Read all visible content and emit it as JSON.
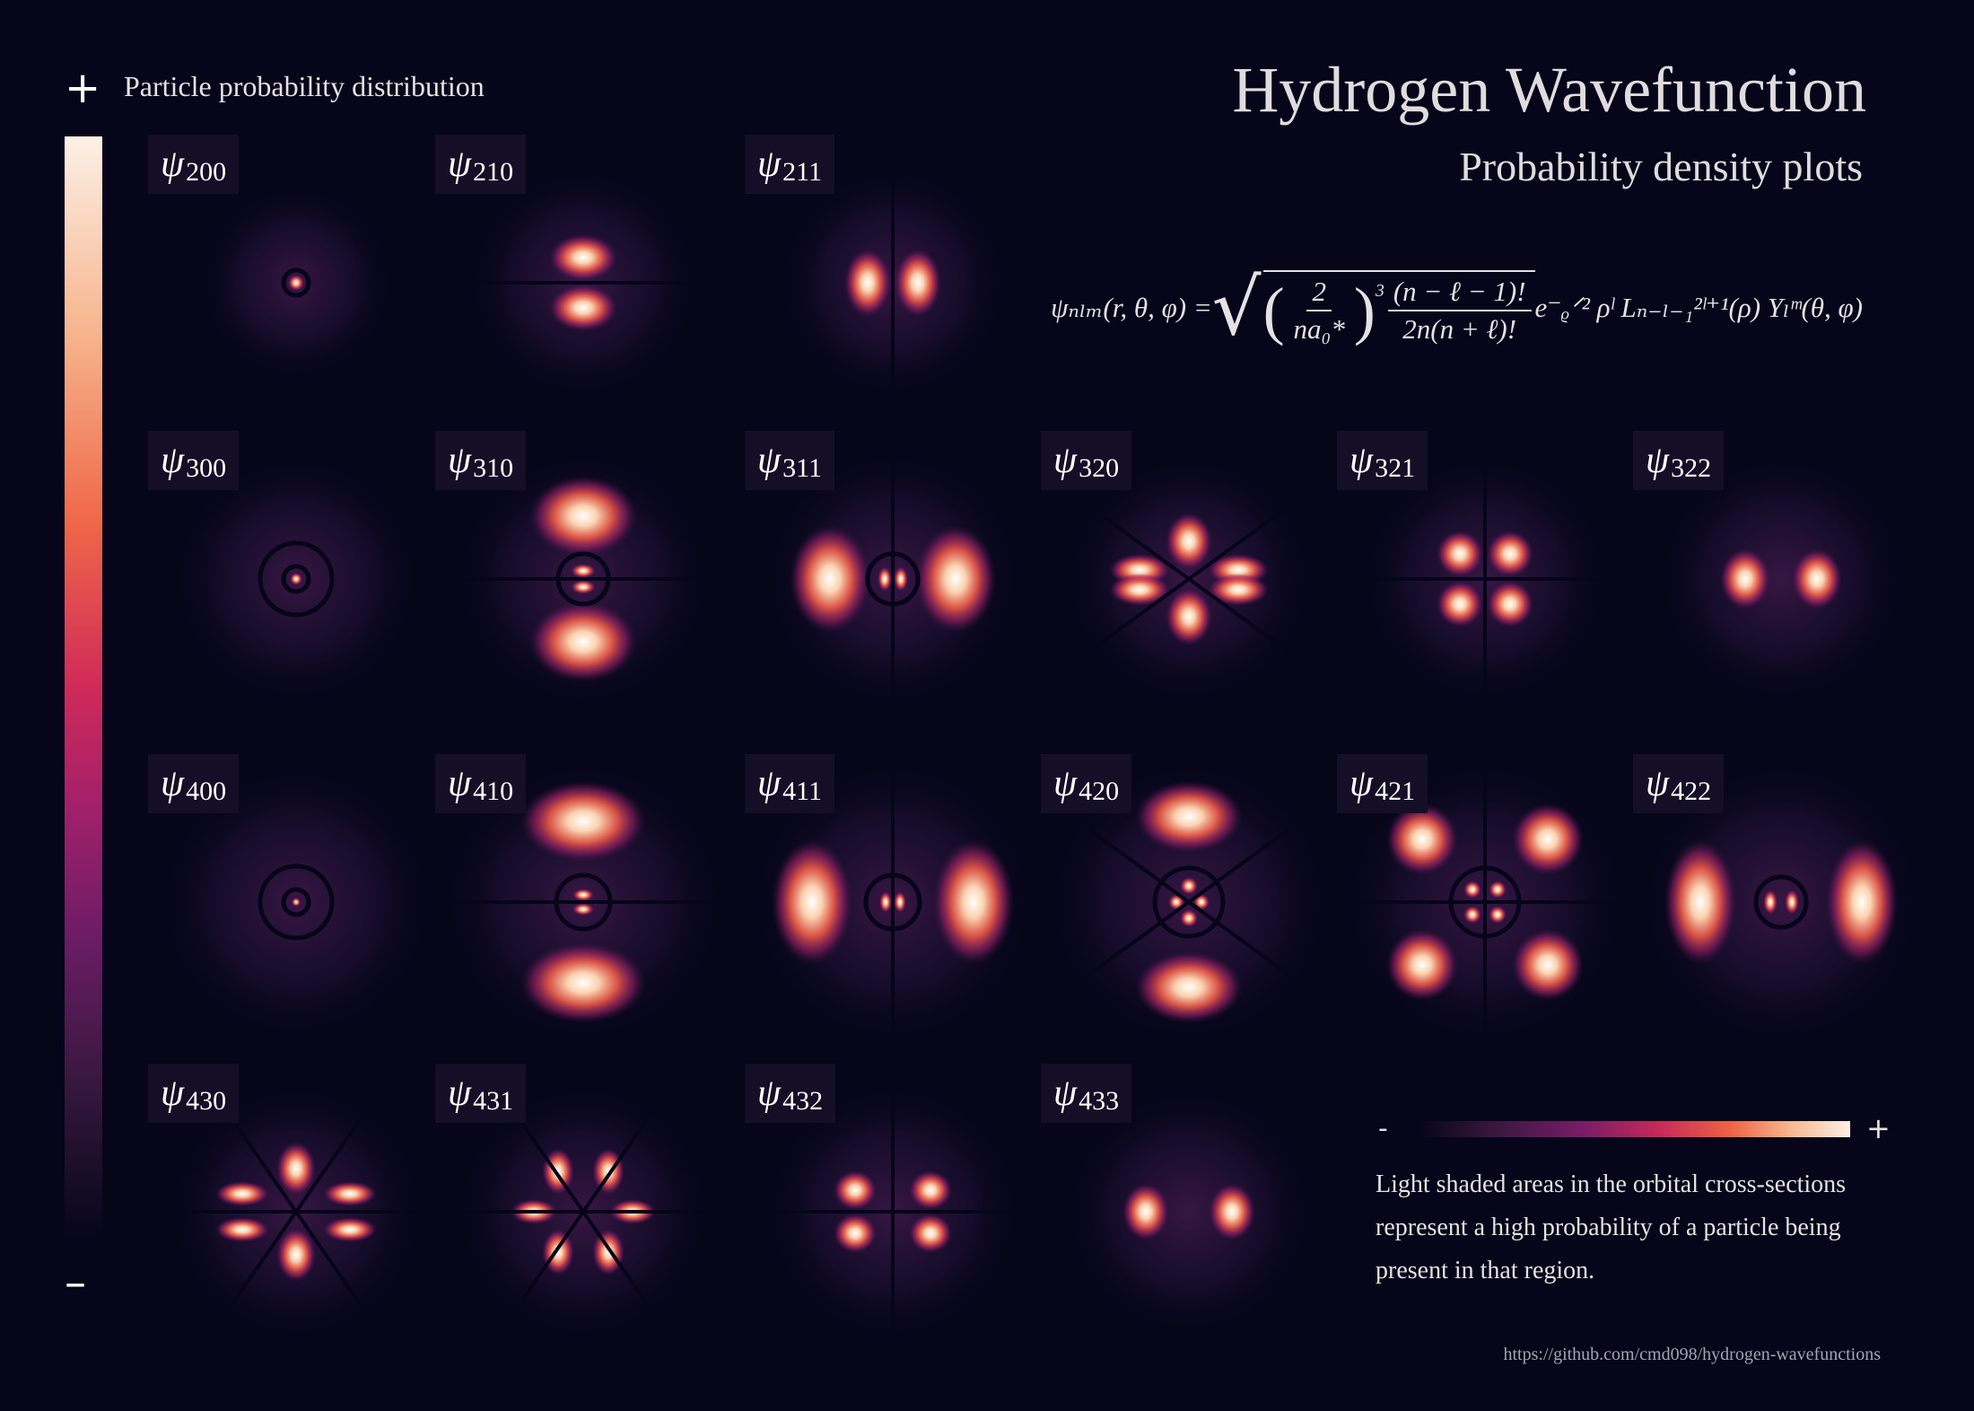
{
  "title": "Hydrogen Wavefunction",
  "subtitle": "Probability density plots",
  "legend": {
    "label": "Particle probability distribution",
    "plus": "+",
    "minus": "–"
  },
  "formula": {
    "lhs": "ψₙₗₘ(r, θ, φ) =",
    "frac1_num": "2",
    "frac1_den": "na₀*",
    "power": "3",
    "frac2_num": "(n − ℓ − 1)!",
    "frac2_den": "2n(n + ℓ)!",
    "tail": "e⁻ᵨᐟ² ρˡ Lₙ₋ₗ₋₁²ˡ⁺¹(ρ) Yₗᵐ(θ, φ)"
  },
  "orbitals": [
    {
      "symbol": "ψ",
      "sub": "200"
    },
    {
      "symbol": "ψ",
      "sub": "210"
    },
    {
      "symbol": "ψ",
      "sub": "211"
    },
    {
      "symbol": "ψ",
      "sub": "300"
    },
    {
      "symbol": "ψ",
      "sub": "310"
    },
    {
      "symbol": "ψ",
      "sub": "311"
    },
    {
      "symbol": "ψ",
      "sub": "320"
    },
    {
      "symbol": "ψ",
      "sub": "321"
    },
    {
      "symbol": "ψ",
      "sub": "322"
    },
    {
      "symbol": "ψ",
      "sub": "400"
    },
    {
      "symbol": "ψ",
      "sub": "410"
    },
    {
      "symbol": "ψ",
      "sub": "411"
    },
    {
      "symbol": "ψ",
      "sub": "420"
    },
    {
      "symbol": "ψ",
      "sub": "421"
    },
    {
      "symbol": "ψ",
      "sub": "422"
    },
    {
      "symbol": "ψ",
      "sub": "430"
    },
    {
      "symbol": "ψ",
      "sub": "431"
    },
    {
      "symbol": "ψ",
      "sub": "432"
    },
    {
      "symbol": "ψ",
      "sub": "433"
    }
  ],
  "color_scale": {
    "minus": "-",
    "plus": "+",
    "colors": [
      "#06051a",
      "#3a1840",
      "#7a1c68",
      "#c4285a",
      "#ee6144",
      "#f6b78f",
      "#fcefe6"
    ]
  },
  "description": "Light shaded areas in the orbital cross-sections represent a high probability of a particle being present in that region.",
  "source_url": "https://github.com/cmd098/hydrogen-wavefunctions"
}
